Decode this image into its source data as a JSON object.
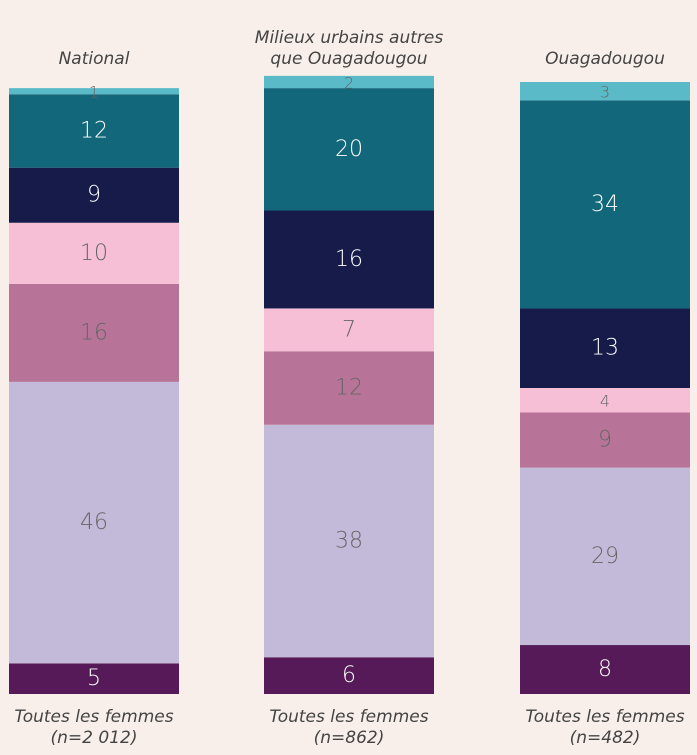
{
  "chart_data": {
    "type": "stacked-bar",
    "categories": [
      "National",
      "Milieux urbains autres que Ouagadougou",
      "Ouagadougou"
    ],
    "footnotes": [
      [
        "Toutes les femmes",
        "(n=2 012)"
      ],
      [
        "Toutes les femmes",
        "(n=862)"
      ],
      [
        "Toutes les femmes",
        "(n=482)"
      ]
    ],
    "series": [
      {
        "color": "#551a57",
        "values": [
          5,
          6,
          8
        ]
      },
      {
        "color": "#c3bad9",
        "values": [
          46,
          38,
          29
        ]
      },
      {
        "color": "#b77498",
        "values": [
          16,
          12,
          9
        ]
      },
      {
        "color": "#f6bfd6",
        "values": [
          10,
          7,
          4
        ]
      },
      {
        "color": "#161b4a",
        "values": [
          9,
          16,
          13
        ]
      },
      {
        "color": "#12677b",
        "values": [
          12,
          20,
          34
        ]
      },
      {
        "color": "#5bbac8",
        "values": [
          1,
          2,
          3
        ]
      }
    ]
  }
}
